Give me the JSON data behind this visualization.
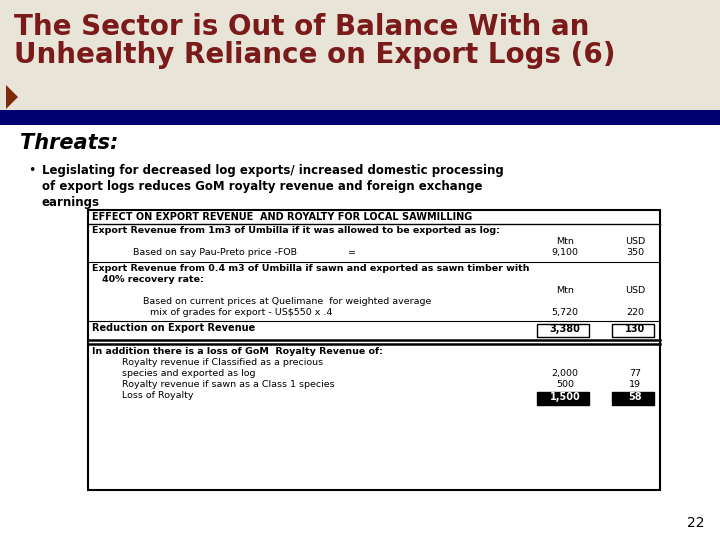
{
  "title_line1": "The Sector is Out of Balance With an",
  "title_line2": "Unhealthy Reliance on Export Logs (6)",
  "title_color": "#7B1A1A",
  "slide_bg": "#E8E4D8",
  "header_bar_color": "#000070",
  "section_label": "Threats:",
  "bullet_line1": "Legislating for decreased log exports/ increased domestic processing",
  "bullet_line2": "of export logs reduces GoM royalty revenue and foreign exchange",
  "bullet_line3": "earnings",
  "table_title": "EFFECT ON EXPORT REVENUE  AND ROYALTY FOR LOCAL SAWMILLING",
  "page_number": "22",
  "white_bg": "#FFFFFF",
  "black": "#000000"
}
